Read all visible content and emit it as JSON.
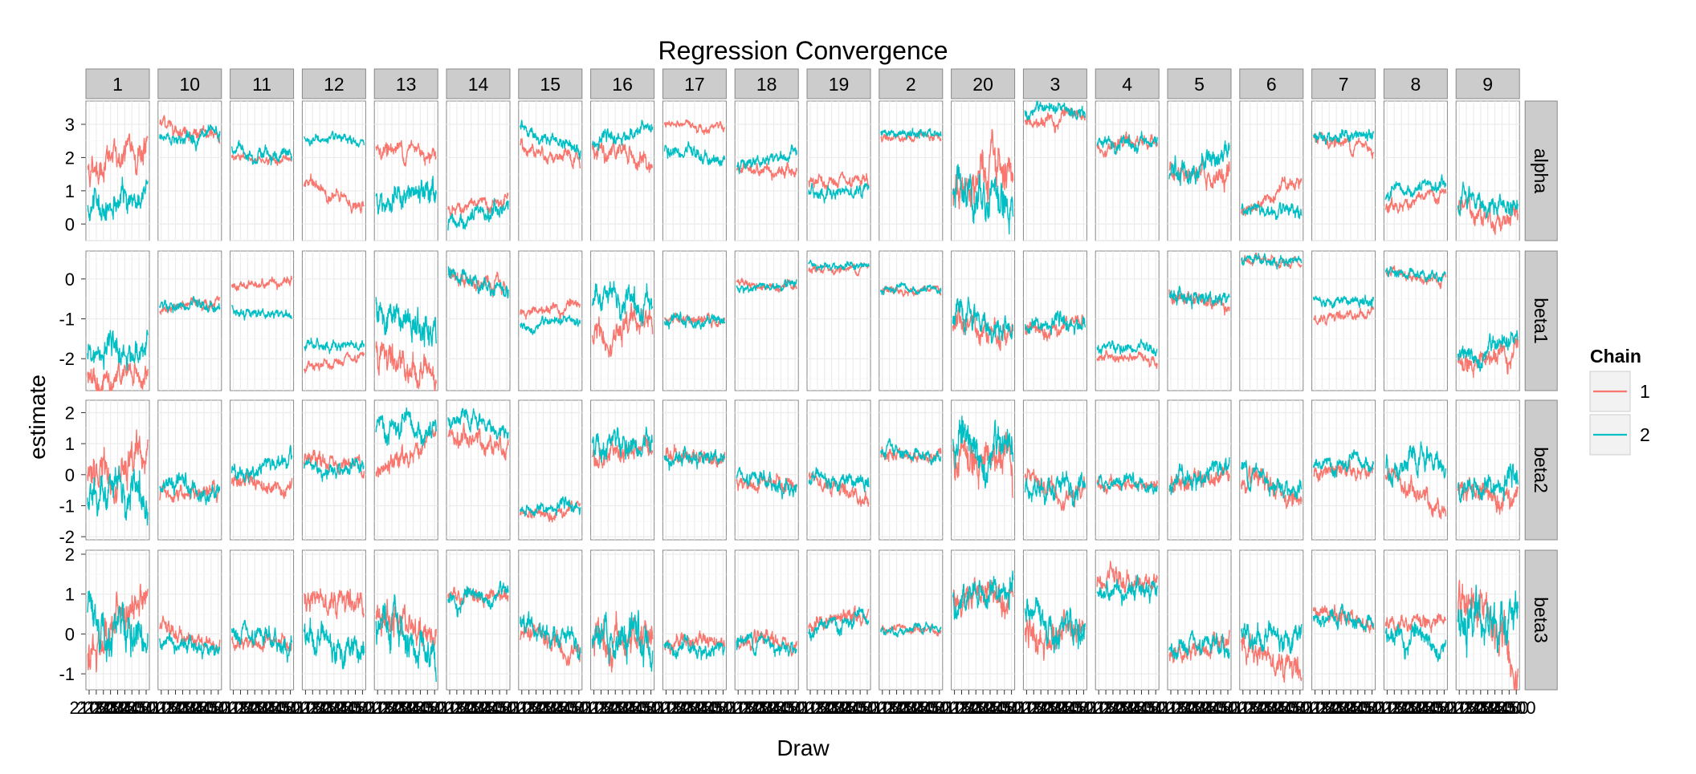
{
  "chart_data": {
    "type": "line",
    "title": "Regression Convergence",
    "xlabel": "Draw",
    "ylabel": "estimate",
    "legend": {
      "title": "Chain",
      "placement": "right"
    },
    "facets_x": [
      "1",
      "10",
      "11",
      "12",
      "13",
      "14",
      "15",
      "16",
      "17",
      "18",
      "19",
      "2",
      "20",
      "3",
      "4",
      "5",
      "6",
      "7",
      "8",
      "9"
    ],
    "facets_y": [
      "alpha",
      "beta1",
      "beta2",
      "beta3"
    ],
    "x_tick_labels": [
      "2100",
      "2150",
      "2200",
      "2250",
      "2300",
      "2350",
      "2400",
      "2450",
      "2500"
    ],
    "x_range": [
      2100,
      2500
    ],
    "rows": [
      {
        "name": "alpha",
        "ylim": [
          -0.5,
          3.7
        ],
        "ticks": [
          0,
          1,
          2,
          3
        ],
        "tick_labels": [
          "0",
          "1",
          "2",
          "3"
        ]
      },
      {
        "name": "beta1",
        "ylim": [
          -2.8,
          0.7
        ],
        "ticks": [
          -2,
          -1,
          0
        ],
        "tick_labels": [
          "-2",
          "-1",
          "0"
        ]
      },
      {
        "name": "beta2",
        "ylim": [
          -2.1,
          2.4
        ],
        "ticks": [
          -2,
          -1,
          0,
          1,
          2
        ],
        "tick_labels": [
          "-2",
          "-1",
          "0",
          "1",
          "2"
        ]
      },
      {
        "name": "beta3",
        "ylim": [
          -1.4,
          2.1
        ],
        "ticks": [
          -1,
          0,
          1,
          2
        ],
        "tick_labels": [
          "-1",
          "0",
          "1",
          "2"
        ]
      }
    ],
    "series": [
      {
        "name": "1",
        "color": "#f8766d"
      },
      {
        "name": "2",
        "color": "#00bfc4"
      }
    ],
    "trace_summary": {
      "alpha": {
        "1": [
          [
            1.7,
            2.3,
            0.35
          ],
          [
            0.4,
            0.9,
            0.3
          ]
        ],
        "10": [
          [
            3.1,
            2.5,
            0.15
          ],
          [
            2.6,
            2.6,
            0.15
          ]
        ],
        "11": [
          [
            2.0,
            1.9,
            0.1
          ],
          [
            2.3,
            2.0,
            0.15
          ]
        ],
        "12": [
          [
            1.3,
            0.4,
            0.15
          ],
          [
            2.6,
            2.4,
            0.1
          ]
        ],
        "13": [
          [
            2.3,
            2.2,
            0.2
          ],
          [
            0.7,
            0.9,
            0.3
          ]
        ],
        "14": [
          [
            0.5,
            0.6,
            0.15
          ],
          [
            -0.1,
            0.5,
            0.2
          ]
        ],
        "15": [
          [
            2.4,
            1.8,
            0.15
          ],
          [
            2.8,
            2.3,
            0.15
          ]
        ],
        "16": [
          [
            2.5,
            1.7,
            0.25
          ],
          [
            2.4,
            2.9,
            0.15
          ]
        ],
        "17": [
          [
            3.0,
            2.9,
            0.1
          ],
          [
            2.2,
            1.9,
            0.15
          ]
        ],
        "18": [
          [
            1.7,
            1.6,
            0.15
          ],
          [
            1.8,
            2.1,
            0.15
          ]
        ],
        "19": [
          [
            1.2,
            1.2,
            0.15
          ],
          [
            0.9,
            1.1,
            0.15
          ]
        ],
        "2": [
          [
            2.6,
            2.7,
            0.1
          ],
          [
            2.7,
            2.7,
            0.1
          ]
        ],
        "20": [
          [
            1.0,
            1.8,
            0.5
          ],
          [
            1.2,
            0.8,
            0.5
          ]
        ],
        "3": [
          [
            3.0,
            3.3,
            0.15
          ],
          [
            3.4,
            3.3,
            0.15
          ]
        ],
        "4": [
          [
            2.4,
            2.5,
            0.15
          ],
          [
            2.3,
            2.5,
            0.15
          ]
        ],
        "5": [
          [
            1.5,
            1.3,
            0.25
          ],
          [
            1.4,
            2.2,
            0.25
          ]
        ],
        "6": [
          [
            0.4,
            1.4,
            0.15
          ],
          [
            0.5,
            0.2,
            0.15
          ]
        ],
        "7": [
          [
            2.6,
            2.3,
            0.15
          ],
          [
            2.7,
            2.6,
            0.15
          ]
        ],
        "8": [
          [
            0.5,
            0.9,
            0.15
          ],
          [
            0.8,
            1.2,
            0.15
          ]
        ],
        "9": [
          [
            0.6,
            0.0,
            0.25
          ],
          [
            0.7,
            0.5,
            0.25
          ]
        ]
      },
      "beta1": {
        "1": [
          [
            -2.3,
            -2.5,
            0.25
          ],
          [
            -1.9,
            -1.8,
            0.25
          ]
        ],
        "10": [
          [
            -0.8,
            -0.5,
            0.1
          ],
          [
            -0.7,
            -0.7,
            0.1
          ]
        ],
        "11": [
          [
            -0.2,
            0.0,
            0.1
          ],
          [
            -0.8,
            -0.9,
            0.1
          ]
        ],
        "12": [
          [
            -2.3,
            -2.0,
            0.1
          ],
          [
            -1.7,
            -1.6,
            0.1
          ]
        ],
        "13": [
          [
            -1.8,
            -2.4,
            0.3
          ],
          [
            -0.7,
            -1.5,
            0.3
          ]
        ],
        "14": [
          [
            0.1,
            -0.3,
            0.15
          ],
          [
            0.2,
            -0.3,
            0.15
          ]
        ],
        "15": [
          [
            -0.8,
            -0.7,
            0.1
          ],
          [
            -1.2,
            -1.1,
            0.1
          ]
        ],
        "16": [
          [
            -1.4,
            -1.0,
            0.25
          ],
          [
            -0.5,
            -0.7,
            0.25
          ]
        ],
        "17": [
          [
            -1.0,
            -1.1,
            0.1
          ],
          [
            -1.1,
            -1.0,
            0.1
          ]
        ],
        "18": [
          [
            -0.1,
            -0.2,
            0.08
          ],
          [
            -0.2,
            -0.2,
            0.08
          ]
        ],
        "19": [
          [
            0.2,
            0.3,
            0.08
          ],
          [
            0.4,
            0.3,
            0.08
          ]
        ],
        "2": [
          [
            -0.3,
            -0.3,
            0.08
          ],
          [
            -0.3,
            -0.3,
            0.08
          ]
        ],
        "20": [
          [
            -1.1,
            -1.3,
            0.25
          ],
          [
            -1.0,
            -1.3,
            0.25
          ]
        ],
        "3": [
          [
            -1.2,
            -1.1,
            0.15
          ],
          [
            -1.2,
            -1.1,
            0.15
          ]
        ],
        "4": [
          [
            -2.0,
            -2.0,
            0.1
          ],
          [
            -1.7,
            -1.8,
            0.1
          ]
        ],
        "5": [
          [
            -0.4,
            -0.6,
            0.15
          ],
          [
            -0.4,
            -0.5,
            0.15
          ]
        ],
        "6": [
          [
            0.5,
            0.3,
            0.1
          ],
          [
            0.4,
            0.5,
            0.1
          ]
        ],
        "7": [
          [
            -1.0,
            -0.8,
            0.1
          ],
          [
            -0.5,
            -0.6,
            0.1
          ]
        ],
        "8": [
          [
            0.2,
            -0.1,
            0.1
          ],
          [
            0.2,
            0.1,
            0.1
          ]
        ],
        "9": [
          [
            -2.1,
            -1.8,
            0.2
          ],
          [
            -2.0,
            -1.7,
            0.2
          ]
        ]
      },
      "beta2": {
        "1": [
          [
            0.0,
            0.6,
            0.45
          ],
          [
            -0.6,
            -0.7,
            0.45
          ]
        ],
        "10": [
          [
            -0.7,
            -0.6,
            0.2
          ],
          [
            -0.3,
            -0.6,
            0.2
          ]
        ],
        "11": [
          [
            -0.1,
            -0.4,
            0.2
          ],
          [
            0.0,
            0.5,
            0.2
          ]
        ],
        "12": [
          [
            0.3,
            0.4,
            0.2
          ],
          [
            0.2,
            0.3,
            0.2
          ]
        ],
        "13": [
          [
            -0.1,
            1.3,
            0.25
          ],
          [
            1.5,
            1.2,
            0.3
          ]
        ],
        "14": [
          [
            1.2,
            1.0,
            0.25
          ],
          [
            1.8,
            1.4,
            0.2
          ]
        ],
        "15": [
          [
            -1.3,
            -1.0,
            0.15
          ],
          [
            -1.2,
            -1.0,
            0.15
          ]
        ],
        "16": [
          [
            0.5,
            0.8,
            0.3
          ],
          [
            1.2,
            0.7,
            0.3
          ]
        ],
        "17": [
          [
            0.7,
            0.5,
            0.2
          ],
          [
            0.6,
            0.6,
            0.2
          ]
        ],
        "18": [
          [
            -0.3,
            -0.4,
            0.2
          ],
          [
            -0.2,
            -0.4,
            0.2
          ]
        ],
        "19": [
          [
            0.0,
            -0.8,
            0.2
          ],
          [
            0.0,
            -0.3,
            0.2
          ]
        ],
        "2": [
          [
            0.6,
            0.6,
            0.15
          ],
          [
            0.8,
            0.6,
            0.15
          ]
        ],
        "20": [
          [
            0.7,
            0.6,
            0.5
          ],
          [
            0.8,
            0.5,
            0.5
          ]
        ],
        "3": [
          [
            -0.3,
            -0.6,
            0.25
          ],
          [
            -0.5,
            -0.5,
            0.3
          ]
        ],
        "4": [
          [
            -0.3,
            -0.4,
            0.15
          ],
          [
            -0.3,
            -0.3,
            0.15
          ]
        ],
        "5": [
          [
            -0.4,
            0.2,
            0.25
          ],
          [
            -0.3,
            0.3,
            0.25
          ]
        ],
        "6": [
          [
            -0.2,
            -0.8,
            0.25
          ],
          [
            0.2,
            -0.5,
            0.25
          ]
        ],
        "7": [
          [
            0.0,
            0.2,
            0.2
          ],
          [
            0.2,
            0.3,
            0.2
          ]
        ],
        "8": [
          [
            -0.1,
            -1.1,
            0.25
          ],
          [
            0.2,
            0.4,
            0.3
          ]
        ],
        "9": [
          [
            -0.5,
            -0.5,
            0.3
          ],
          [
            -0.6,
            -0.3,
            0.3
          ]
        ]
      },
      "beta3": {
        "1": [
          [
            -0.4,
            0.9,
            0.4
          ],
          [
            0.5,
            -0.2,
            0.4
          ]
        ],
        "10": [
          [
            0.1,
            -0.3,
            0.15
          ],
          [
            -0.1,
            -0.4,
            0.15
          ]
        ],
        "11": [
          [
            -0.2,
            -0.3,
            0.15
          ],
          [
            -0.1,
            -0.3,
            0.2
          ]
        ],
        "12": [
          [
            1.0,
            0.8,
            0.25
          ],
          [
            0.1,
            -0.5,
            0.3
          ]
        ],
        "13": [
          [
            0.4,
            0.0,
            0.3
          ],
          [
            0.3,
            -0.5,
            0.35
          ]
        ],
        "14": [
          [
            1.0,
            1.0,
            0.15
          ],
          [
            0.8,
            1.0,
            0.15
          ]
        ],
        "15": [
          [
            -0.1,
            -0.3,
            0.2
          ],
          [
            0.2,
            -0.3,
            0.2
          ]
        ],
        "16": [
          [
            -0.3,
            -0.1,
            0.35
          ],
          [
            -0.2,
            -0.3,
            0.35
          ]
        ],
        "17": [
          [
            -0.2,
            -0.1,
            0.15
          ],
          [
            -0.3,
            -0.4,
            0.15
          ]
        ],
        "18": [
          [
            -0.2,
            -0.3,
            0.15
          ],
          [
            -0.1,
            -0.3,
            0.15
          ]
        ],
        "19": [
          [
            0.2,
            0.5,
            0.15
          ],
          [
            0.1,
            0.3,
            0.15
          ]
        ],
        "2": [
          [
            0.1,
            0.1,
            0.08
          ],
          [
            0.1,
            0.1,
            0.08
          ]
        ],
        "20": [
          [
            0.9,
            1.2,
            0.3
          ],
          [
            0.8,
            1.1,
            0.3
          ]
        ],
        "3": [
          [
            -0.2,
            0.1,
            0.3
          ],
          [
            0.5,
            0.0,
            0.3
          ]
        ],
        "4": [
          [
            1.3,
            1.3,
            0.2
          ],
          [
            1.1,
            1.2,
            0.2
          ]
        ],
        "5": [
          [
            -0.5,
            -0.3,
            0.2
          ],
          [
            -0.4,
            -0.4,
            0.2
          ]
        ],
        "6": [
          [
            -0.2,
            -0.9,
            0.25
          ],
          [
            0.0,
            0.0,
            0.25
          ]
        ],
        "7": [
          [
            0.6,
            0.2,
            0.15
          ],
          [
            0.4,
            0.3,
            0.15
          ]
        ],
        "8": [
          [
            0.3,
            0.4,
            0.15
          ],
          [
            0.0,
            -0.3,
            0.2
          ]
        ],
        "9": [
          [
            0.5,
            -0.3,
            0.45
          ],
          [
            0.3,
            0.2,
            0.45
          ]
        ]
      }
    }
  }
}
